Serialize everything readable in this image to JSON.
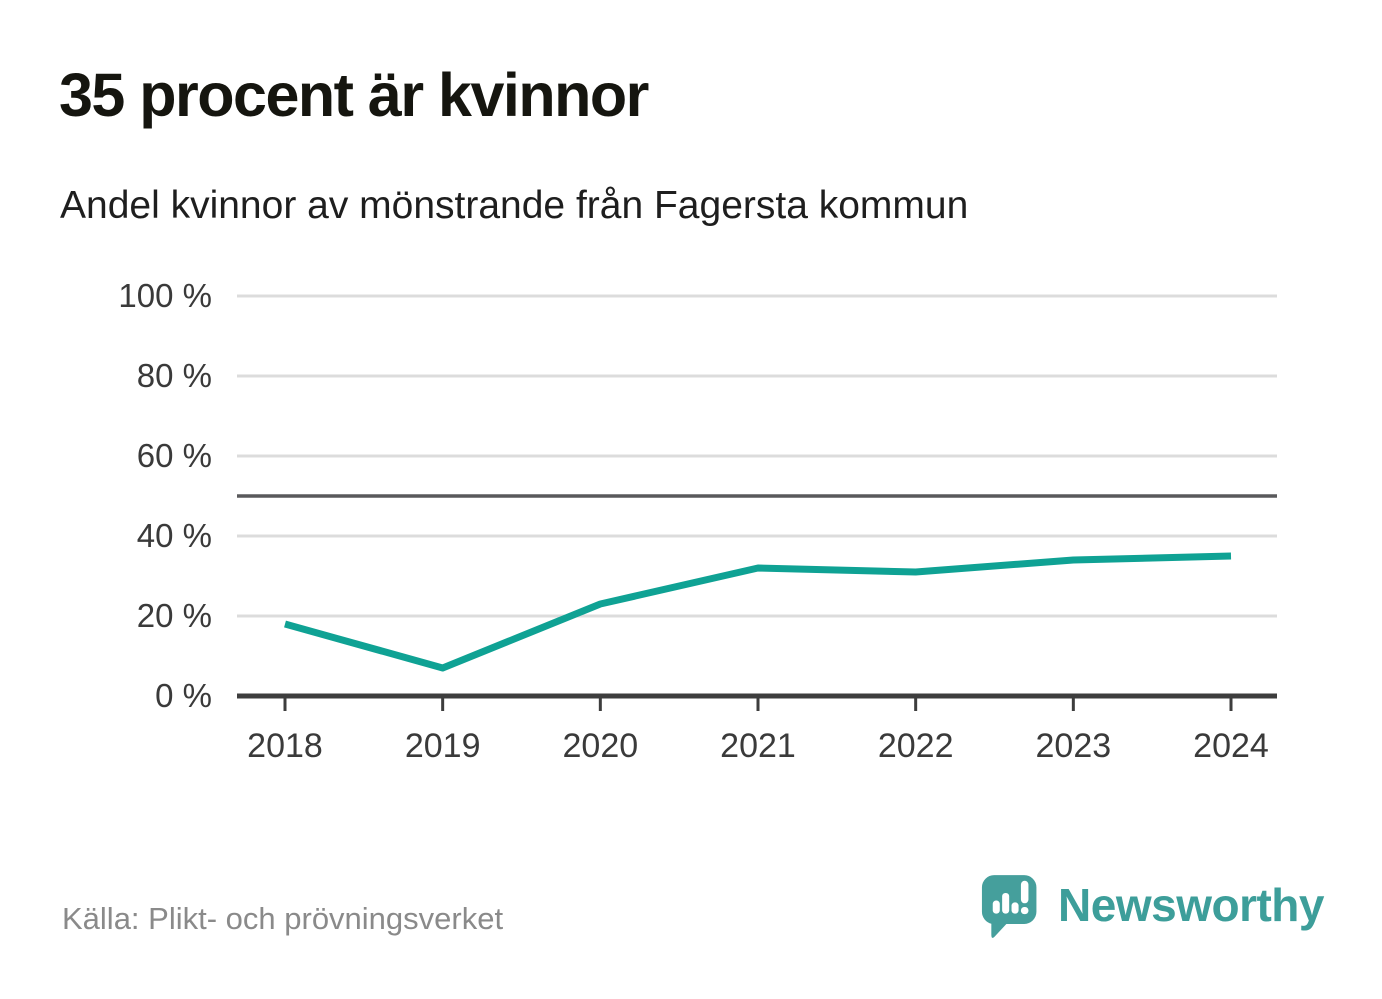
{
  "title": "35 procent är kvinnor",
  "subtitle": "Andel kvinnor av mönstrande från Fagersta kommun",
  "source": "Källa: Plikt- och prövningsverket",
  "brand": {
    "name": "Newsworthy",
    "icon": "newsworthy-logo-icon",
    "text_color": "#3d9e9a",
    "icon_color": "#459f9c"
  },
  "colors": {
    "line": "#0fa294",
    "grid": "#dcdcdc",
    "axis": "#3d3d3d",
    "reference_line": "#59595b",
    "tick_label": "#3a3a3a",
    "title_text": "#15150f",
    "source_text": "#8a8a8a"
  },
  "chart_data": {
    "type": "line",
    "title": "35 procent är kvinnor",
    "subtitle": "Andel kvinnor av mönstrande från Fagersta kommun",
    "categories": [
      "2018",
      "2019",
      "2020",
      "2021",
      "2022",
      "2023",
      "2024"
    ],
    "series": [
      {
        "name": "Andel kvinnor av mönstrande (%)",
        "values": [
          18,
          7,
          23,
          32,
          31,
          34,
          35
        ]
      }
    ],
    "xlabel": "",
    "ylabel": "",
    "ylim": [
      0,
      100
    ],
    "yticks": [
      0,
      20,
      40,
      60,
      80,
      100
    ],
    "ytick_labels": [
      "0 %",
      "20 %",
      "40 %",
      "60 %",
      "80 %",
      "100 %"
    ],
    "reference_line": 50,
    "grid": true,
    "legend": false
  }
}
